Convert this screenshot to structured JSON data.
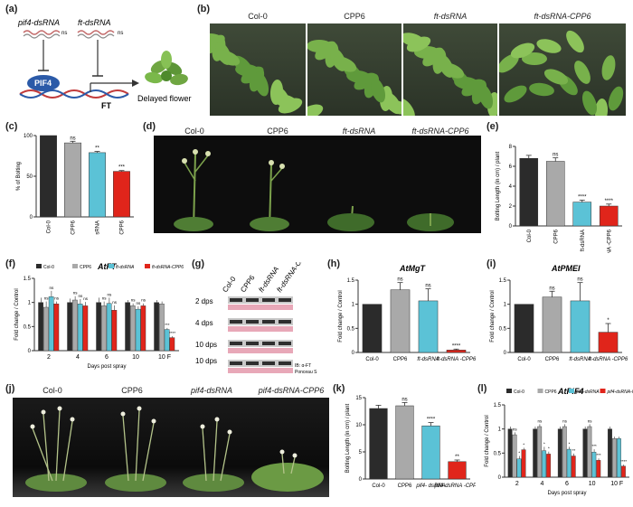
{
  "panels": {
    "a": {
      "label": "(a)",
      "text1": "pif4-dsRNA",
      "text2": "ft-dsRNA",
      "text3": "PIF4",
      "text4": "FT",
      "text5": "Delayed flowering",
      "ns": "ns"
    },
    "b": {
      "label": "(b)",
      "photos": [
        "Col-0",
        "CPP6",
        "ft-dsRNA",
        "ft-dsRNA-CPP6"
      ]
    },
    "c": {
      "label": "(c)"
    },
    "d": {
      "label": "(d)",
      "photos": [
        "Col-0",
        "CPP6",
        "ft-dsRNA",
        "ft-dsRNA-CPP6"
      ]
    },
    "e": {
      "label": "(e)"
    },
    "f": {
      "label": "(f)"
    },
    "g": {
      "label": "(g)",
      "lanes": [
        "Col-0",
        "CPP6",
        "ft-dsRNA",
        "ft-dsRNA-CPP6"
      ],
      "rows": [
        "2 dps",
        "4 dps",
        "10 dps",
        "10 dps Flower"
      ],
      "ib": "IB: α-FT",
      "ponceau": "Ponceau S"
    },
    "h": {
      "label": "(h)"
    },
    "i": {
      "label": "(i)"
    },
    "j": {
      "label": "(j)",
      "photos": [
        "Col-0",
        "CPP6",
        "pif4-dsRNA",
        "pif4-dsRNA-CPP6"
      ]
    },
    "k": {
      "label": "(k)"
    },
    "l": {
      "label": "(l)"
    }
  },
  "colors": {
    "black": "#2b2b2b",
    "gray": "#a9a9a9",
    "cyan": "#5bc2d6",
    "red": "#e0251b"
  },
  "chart_data": [
    {
      "id": "c",
      "type": "bar",
      "ylabel": "% of Bolting",
      "categories": [
        "Col-0",
        "CPP6",
        "ft-dsRNA",
        "ft-dsRNA CPP6"
      ],
      "values": [
        100,
        91,
        79,
        56
      ],
      "errors": [
        0,
        2,
        1.5,
        1
      ],
      "sig": [
        "",
        "ns",
        "**",
        "***"
      ],
      "ylim": [
        0,
        100
      ]
    },
    {
      "id": "e",
      "type": "bar",
      "ylabel": "Bolting Length (in cm) / plant",
      "categories": [
        "Col-0",
        "CPP6",
        "ft-dsRNA",
        "ft-dsRNA -CPP6"
      ],
      "values": [
        6.8,
        6.5,
        2.4,
        2.0
      ],
      "errors": [
        0.3,
        0.35,
        0.2,
        0.2
      ],
      "sig": [
        "",
        "ns",
        "****",
        "****"
      ],
      "yticks": [
        0,
        2,
        4,
        6,
        8
      ],
      "ylim": [
        0,
        8
      ]
    },
    {
      "id": "f",
      "type": "bar",
      "title": "AtFT",
      "ylabel": "Fold change / Control",
      "xlabel": "Days post spray",
      "categories": [
        "2",
        "4",
        "6",
        "10",
        "10 F"
      ],
      "series": [
        {
          "name": "Col-0",
          "values": [
            1.0,
            1.0,
            1.0,
            1.0,
            1.0
          ],
          "errors": [
            0.1,
            0.08,
            0.1,
            0.05,
            0.05
          ]
        },
        {
          "name": "CPP6",
          "values": [
            0.9,
            1.05,
            0.93,
            0.93,
            0.97
          ],
          "errors": [
            0.12,
            0.08,
            0.09,
            0.05,
            0.05
          ]
        },
        {
          "name": "ft-dsRNA",
          "values": [
            1.12,
            0.97,
            0.98,
            0.86,
            0.44
          ],
          "errors": [
            0.12,
            0.1,
            0.12,
            0.06,
            0.03
          ]
        },
        {
          "name": "ft-dsRNA-CPP6",
          "values": [
            0.97,
            0.93,
            0.84,
            0.93,
            0.27
          ],
          "errors": [
            0.05,
            0.08,
            0.1,
            0.05,
            0.03
          ]
        }
      ],
      "sig": [
        [
          "",
          "ns",
          "ns",
          "ns"
        ],
        [
          "",
          "ns",
          "ns",
          "ns"
        ],
        [
          "",
          "ns",
          "ns",
          "ns"
        ],
        [
          "",
          "ns",
          "ns",
          "ns"
        ],
        [
          "",
          "",
          "***",
          "****"
        ]
      ],
      "yticks": [
        0,
        0.5,
        1.0,
        1.5
      ],
      "ylim": [
        0,
        1.5
      ]
    },
    {
      "id": "h",
      "type": "bar",
      "title": "AtMgT",
      "ylabel": "Fold change / Control",
      "categories": [
        "Col-0",
        "CPP6",
        "ft-dsRNA",
        "ft-dsRNA -CPP6"
      ],
      "values": [
        1.0,
        1.3,
        1.07,
        0.05
      ],
      "errors": [
        0,
        0.15,
        0.25,
        0.02
      ],
      "sig": [
        "",
        "ns",
        "ns",
        "****"
      ],
      "yticks": [
        0,
        0.5,
        1.0,
        1.5
      ],
      "ylim": [
        0,
        1.5
      ]
    },
    {
      "id": "i",
      "type": "bar",
      "title": "AtPMEI",
      "ylabel": "Fold change / Control",
      "categories": [
        "Col-0",
        "CPP6",
        "ft-dsRNA",
        "ft-dsRNA -CPP6"
      ],
      "values": [
        1.0,
        1.15,
        1.07,
        0.42
      ],
      "errors": [
        0,
        0.12,
        0.38,
        0.18
      ],
      "sig": [
        "",
        "ns",
        "ns",
        "*"
      ],
      "yticks": [
        0,
        0.5,
        1.0,
        1.5
      ],
      "ylim": [
        0,
        1.5
      ]
    },
    {
      "id": "k",
      "type": "bar",
      "ylabel": "Bolting Length (in cm) / plant",
      "categories": [
        "Col-0",
        "CPP6",
        "pif4- dsRNA",
        "pif4-dsRNA -CPP6"
      ],
      "values": [
        13.0,
        13.5,
        9.8,
        3.2
      ],
      "errors": [
        0.6,
        0.6,
        0.6,
        0.3
      ],
      "sig": [
        "",
        "ns",
        "****",
        "**"
      ],
      "yticks": [
        0,
        5,
        10,
        15
      ],
      "ylim": [
        0,
        15
      ]
    },
    {
      "id": "l",
      "type": "bar",
      "title": "AtPIF4",
      "ylabel": "Fold change / Control",
      "xlabel": "Days post spray",
      "categories": [
        "2",
        "4",
        "6",
        "10",
        "10 F"
      ],
      "series": [
        {
          "name": "Col-0",
          "values": [
            1.0,
            1.0,
            1.0,
            1.0,
            1.0
          ],
          "errors": [
            0.05,
            0.05,
            0.05,
            0.05,
            0.05
          ]
        },
        {
          "name": "CPP6",
          "values": [
            0.88,
            1.05,
            1.05,
            1.05,
            0.8
          ],
          "errors": [
            0.05,
            0.05,
            0.05,
            0.05,
            0.04
          ]
        },
        {
          "name": "pif4-dsRNA",
          "values": [
            0.38,
            0.55,
            0.58,
            0.52,
            0.8
          ],
          "errors": [
            0.06,
            0.08,
            0.05,
            0.06,
            0.04
          ]
        },
        {
          "name": "pif4-dsRNA-CPP6",
          "values": [
            0.57,
            0.48,
            0.44,
            0.35,
            0.23
          ],
          "errors": [
            0.04,
            0.05,
            0.05,
            0.04,
            0.03
          ]
        }
      ],
      "sig": [
        [
          "",
          "ns",
          "*",
          "*"
        ],
        [
          "",
          "ns",
          "*",
          "*"
        ],
        [
          "",
          "ns",
          "*",
          "**"
        ],
        [
          "",
          "ns",
          "***",
          "***"
        ],
        [
          "",
          "",
          "",
          "****"
        ]
      ],
      "yticks": [
        0,
        0.5,
        1.0,
        1.5
      ],
      "ylim": [
        0,
        1.5
      ]
    }
  ]
}
